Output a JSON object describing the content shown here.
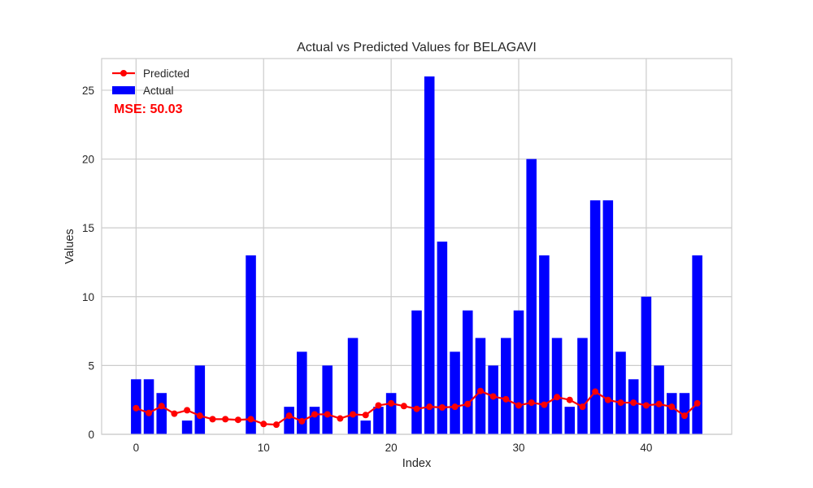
{
  "chart_data": {
    "type": "bar",
    "title": "Actual vs Predicted Values for BELAGAVI",
    "xlabel": "Index",
    "ylabel": "Values",
    "xlim": [
      -2.7,
      46.7
    ],
    "ylim": [
      0,
      27.3
    ],
    "xticks": [
      0,
      10,
      20,
      30,
      40
    ],
    "yticks": [
      0,
      5,
      10,
      15,
      20,
      25
    ],
    "grid": true,
    "legend_position": "upper-left",
    "annotation": "MSE: 50.03",
    "x": [
      0,
      1,
      2,
      3,
      4,
      5,
      6,
      7,
      8,
      9,
      10,
      11,
      12,
      13,
      14,
      15,
      16,
      17,
      18,
      19,
      20,
      21,
      22,
      23,
      24,
      25,
      26,
      27,
      28,
      29,
      30,
      31,
      32,
      33,
      34,
      35,
      36,
      37,
      38,
      39,
      40,
      41,
      42,
      43,
      44
    ],
    "series": [
      {
        "name": "Actual",
        "kind": "bar",
        "color": "#0000ff",
        "values": [
          4,
          4,
          3,
          0,
          1,
          5,
          0,
          0,
          0,
          13,
          0,
          0,
          2,
          6,
          2,
          5,
          0,
          7,
          1,
          2,
          3,
          0,
          9,
          26,
          14,
          6,
          9,
          7,
          5,
          7,
          9,
          20,
          13,
          7,
          2,
          7,
          17,
          17,
          6,
          4,
          10,
          5,
          3,
          3,
          13
        ]
      },
      {
        "name": "Predicted",
        "kind": "line",
        "color": "#ff0000",
        "values": [
          1.9,
          1.55,
          2.05,
          1.5,
          1.75,
          1.35,
          1.1,
          1.1,
          1.05,
          1.1,
          0.75,
          0.7,
          1.35,
          0.95,
          1.45,
          1.45,
          1.15,
          1.45,
          1.4,
          2.1,
          2.25,
          2.05,
          1.85,
          2.0,
          1.95,
          2.0,
          2.2,
          3.15,
          2.75,
          2.55,
          2.1,
          2.3,
          2.15,
          2.7,
          2.5,
          2.0,
          3.1,
          2.5,
          2.3,
          2.3,
          2.1,
          2.2,
          2.0,
          1.35,
          2.25
        ]
      }
    ]
  }
}
